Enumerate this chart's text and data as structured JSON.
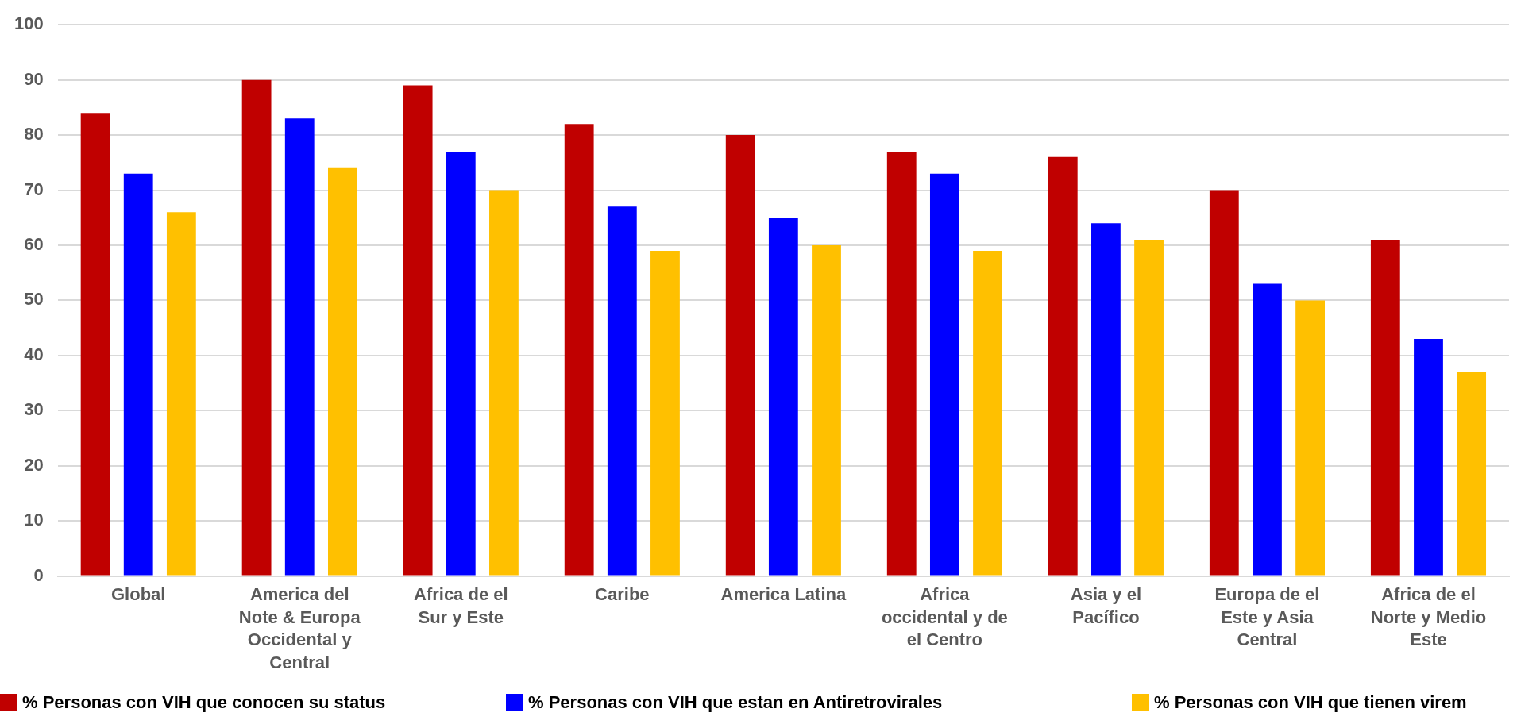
{
  "chart_data": {
    "type": "bar",
    "categories": [
      "Global",
      "America del\nNote & Europa\nOccidental y\nCentral",
      "Africa de el\nSur y Este",
      "Caribe",
      "America Latina",
      "Africa\noccidental y de\nel Centro",
      "Asia y el\nPacífico",
      "Europa de el\nEste y Asia\nCentral",
      "Africa de el\nNorte y Medio\nEste"
    ],
    "series": [
      {
        "name": "% Personas con VIH que conocen su status",
        "color": "#c00000",
        "values": [
          84,
          90,
          89,
          82,
          80,
          77,
          76,
          70,
          61
        ]
      },
      {
        "name": "% Personas con VIH que estan en Antiretrovirales",
        "color": "#0000ff",
        "values": [
          73,
          83,
          77,
          67,
          65,
          73,
          64,
          53,
          43
        ]
      },
      {
        "name": "% Personas con VIH que tienen virem",
        "color": "#ffc000",
        "values": [
          66,
          74,
          70,
          59,
          60,
          59,
          61,
          50,
          37
        ]
      }
    ],
    "ylim": [
      0,
      100
    ],
    "yticks": [
      0,
      10,
      20,
      30,
      40,
      50,
      60,
      70,
      80,
      90,
      100
    ],
    "grid": "y",
    "legend": "bottom"
  }
}
